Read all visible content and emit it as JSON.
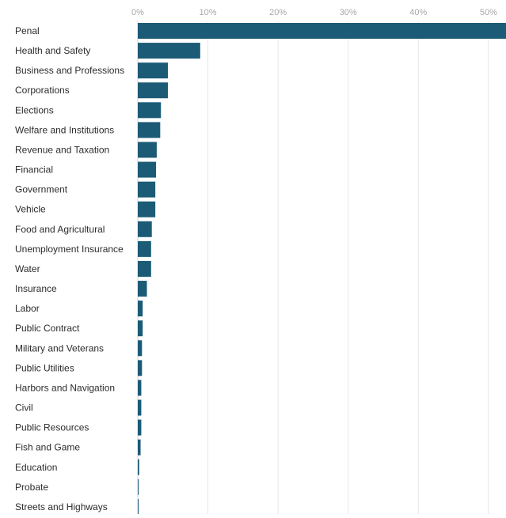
{
  "chart_data": {
    "type": "bar",
    "orientation": "horizontal",
    "title": "",
    "xlabel": "",
    "ylabel": "",
    "xlim": [
      0,
      52.5
    ],
    "x_ticks": [
      0,
      10,
      20,
      30,
      40,
      50
    ],
    "x_tick_labels": [
      "0%",
      "10%",
      "20%",
      "30%",
      "40%",
      "50%"
    ],
    "x_axis_position": "top",
    "grid": true,
    "legend": "none",
    "bar_color": "#1c5b76",
    "categories": [
      "Penal",
      "Health and Safety",
      "Business and Professions",
      "Corporations",
      "Elections",
      "Welfare and Institutions",
      "Revenue and Taxation",
      "Financial",
      "Government",
      "Vehicle",
      "Food and Agricultural",
      "Unemployment Insurance",
      "Water",
      "Insurance",
      "Labor",
      "Public Contract",
      "Military and Veterans",
      "Public Utilities",
      "Harbors and Navigation",
      "Civil",
      "Public Resources",
      "Fish and Game",
      "Education",
      "Probate",
      "Streets and Highways"
    ],
    "values": [
      52.5,
      8.9,
      4.3,
      4.3,
      3.3,
      3.2,
      2.7,
      2.6,
      2.5,
      2.5,
      2.0,
      1.9,
      1.9,
      1.3,
      0.7,
      0.7,
      0.6,
      0.6,
      0.5,
      0.5,
      0.5,
      0.4,
      0.2,
      0.1,
      0.1
    ]
  }
}
